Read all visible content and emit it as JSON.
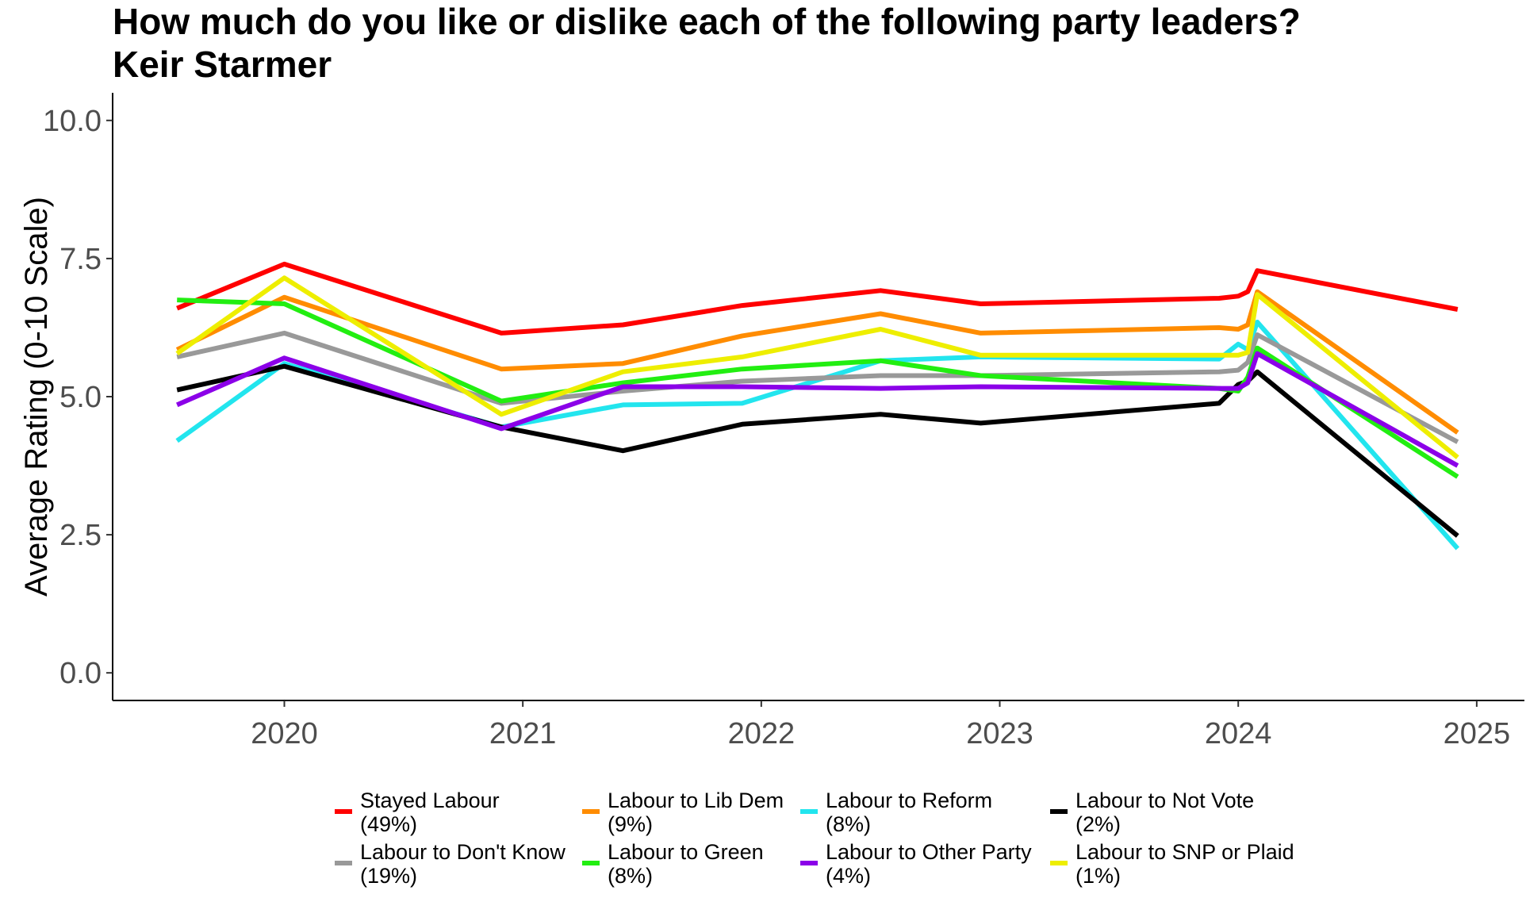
{
  "chart_data": {
    "type": "line",
    "title": "How much do you like or dislike each of the following party leaders?",
    "subtitle": "Keir Starmer",
    "xlabel": "",
    "ylabel": "Average Rating (0-10 Scale)",
    "xlim": [
      2019.28,
      2025.2
    ],
    "ylim": [
      -0.5,
      10.5
    ],
    "x_ticks": [
      "2020",
      "2021",
      "2022",
      "2023",
      "2024",
      "2025"
    ],
    "y_ticks": [
      "0.0",
      "2.5",
      "5.0",
      "7.5",
      "10.0"
    ],
    "legend_position": "bottom",
    "series": [
      {
        "name": "Stayed Labour",
        "share": "(49%)",
        "color": "#ff0000",
        "x": [
          2019.55,
          2020.0,
          2020.91,
          2021.42,
          2021.92,
          2022.5,
          2022.92,
          2023.92,
          2024.0,
          2024.04,
          2024.08,
          2024.92
        ],
        "y": [
          6.6,
          7.4,
          6.15,
          6.3,
          6.65,
          6.92,
          6.68,
          6.78,
          6.82,
          6.9,
          7.28,
          6.58
        ]
      },
      {
        "name": "Labour to Lib Dem",
        "share": "(9%)",
        "color": "#ff8c00",
        "x": [
          2019.55,
          2020.0,
          2020.91,
          2021.42,
          2021.92,
          2022.5,
          2022.92,
          2023.92,
          2024.0,
          2024.04,
          2024.08,
          2024.92
        ],
        "y": [
          5.85,
          6.8,
          5.5,
          5.6,
          6.1,
          6.5,
          6.15,
          6.25,
          6.22,
          6.3,
          6.9,
          4.35
        ]
      },
      {
        "name": "Labour to Reform",
        "share": "(8%)",
        "color": "#22e5ee",
        "x": [
          2019.55,
          2020.0,
          2020.91,
          2021.42,
          2021.92,
          2022.5,
          2022.92,
          2023.92,
          2024.0,
          2024.04,
          2024.08,
          2024.92
        ],
        "y": [
          4.2,
          5.6,
          4.45,
          4.85,
          4.88,
          5.65,
          5.72,
          5.68,
          5.95,
          5.85,
          6.35,
          2.25
        ]
      },
      {
        "name": "Labour to Not Vote",
        "share": "(2%)",
        "color": "#000000",
        "x": [
          2019.55,
          2020.0,
          2020.91,
          2021.42,
          2021.92,
          2022.5,
          2022.92,
          2023.92,
          2024.0,
          2024.04,
          2024.08,
          2024.92
        ],
        "y": [
          5.12,
          5.55,
          4.45,
          4.02,
          4.5,
          4.68,
          4.52,
          4.88,
          5.22,
          5.28,
          5.45,
          2.48
        ]
      },
      {
        "name": "Labour to Don't Know",
        "share": "(19%)",
        "color": "#999999",
        "x": [
          2019.55,
          2020.0,
          2020.91,
          2021.42,
          2021.92,
          2022.5,
          2022.92,
          2023.92,
          2024.0,
          2024.04,
          2024.08,
          2024.92
        ],
        "y": [
          5.72,
          6.15,
          4.88,
          5.1,
          5.28,
          5.38,
          5.38,
          5.45,
          5.48,
          5.62,
          6.12,
          4.18
        ]
      },
      {
        "name": "Labour to Green",
        "share": "(8%)",
        "color": "#22ee11",
        "x": [
          2019.55,
          2020.0,
          2020.91,
          2021.42,
          2021.92,
          2022.5,
          2022.92,
          2023.92,
          2024.0,
          2024.04,
          2024.08,
          2024.92
        ],
        "y": [
          6.75,
          6.68,
          4.92,
          5.25,
          5.5,
          5.65,
          5.38,
          5.15,
          5.1,
          5.35,
          5.88,
          3.55
        ]
      },
      {
        "name": "Labour to Other Party",
        "share": "(4%)",
        "color": "#8b00e8",
        "x": [
          2019.55,
          2020.0,
          2020.91,
          2021.42,
          2021.92,
          2022.5,
          2022.92,
          2023.92,
          2024.0,
          2024.04,
          2024.08,
          2024.92
        ],
        "y": [
          4.85,
          5.7,
          4.42,
          5.18,
          5.18,
          5.15,
          5.18,
          5.15,
          5.15,
          5.25,
          5.78,
          3.75
        ]
      },
      {
        "name": "Labour to SNP or Plaid",
        "share": "(1%)",
        "color": "#eeee00",
        "x": [
          2019.55,
          2020.0,
          2020.91,
          2021.42,
          2021.92,
          2022.5,
          2022.92,
          2023.92,
          2024.0,
          2024.04,
          2024.08,
          2024.92
        ],
        "y": [
          5.78,
          7.15,
          4.68,
          5.45,
          5.72,
          6.22,
          5.75,
          5.75,
          5.75,
          5.8,
          6.85,
          3.9
        ]
      }
    ]
  }
}
